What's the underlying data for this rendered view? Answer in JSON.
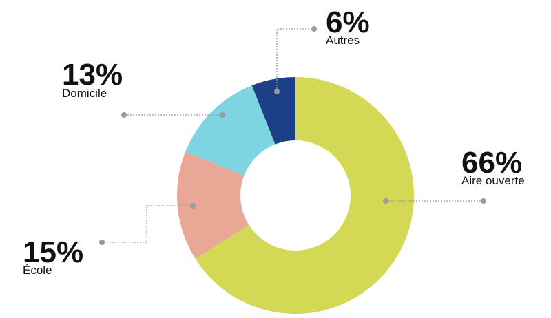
{
  "chart_data": {
    "type": "pie",
    "categories": [
      "Aire ouverte",
      "École",
      "Domicile",
      "Autres"
    ],
    "values": [
      66,
      15,
      13,
      6
    ],
    "value_labels": [
      "66%",
      "15%",
      "13%",
      "6%"
    ],
    "colors": [
      "#d3d955",
      "#e9a896",
      "#7dd5e2",
      "#1d3f88"
    ]
  }
}
